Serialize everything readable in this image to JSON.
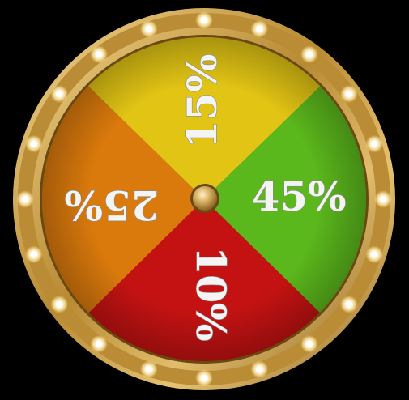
{
  "wheel": {
    "segments": [
      {
        "label": "15%",
        "color": "#e2c514",
        "direction": "top"
      },
      {
        "label": "45%",
        "color": "#5bb81c",
        "direction": "right"
      },
      {
        "label": "10%",
        "color": "#c41212",
        "direction": "bottom"
      },
      {
        "label": "25%",
        "color": "#db7a0c",
        "direction": "left"
      }
    ],
    "rim_color": "#c79a3c",
    "bulb_count": 20,
    "hub_icon": "gold-hub"
  }
}
